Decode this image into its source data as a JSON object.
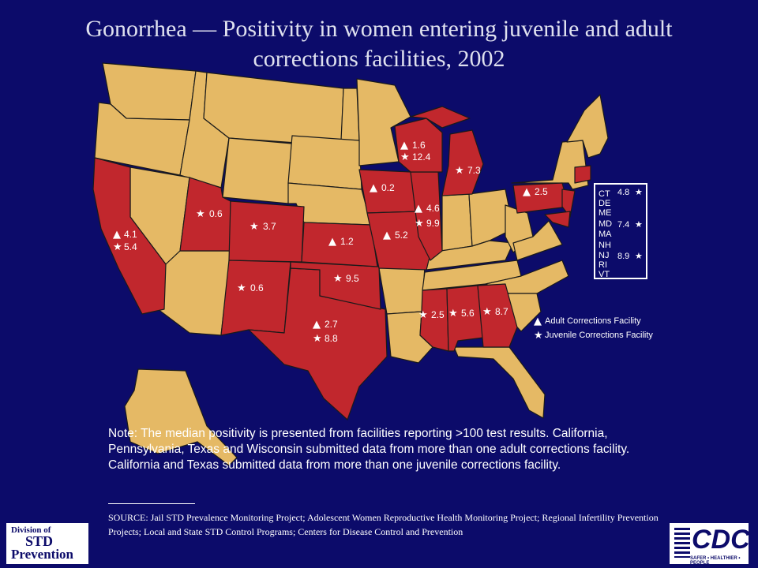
{
  "title": "Gonorrhea — Positivity in women entering juvenile and adult corrections facilities, 2002",
  "title_line1": "Gonorrhea — Positivity in women entering juvenile and adult",
  "title_line2": "corrections facilities, 2002",
  "colors": {
    "background": "#0c0b6a",
    "reporting_state": "#c1272d",
    "other_state": "#e5b965",
    "border": "#1a1a1a"
  },
  "icons": {
    "adult": "triangle-icon",
    "juvenile": "star-icon"
  },
  "states": [
    {
      "state": "WA",
      "adult": null,
      "juvenile": null
    },
    {
      "state": "CA",
      "adult": "4.1",
      "juvenile": "5.4"
    },
    {
      "state": "UT",
      "adult": null,
      "juvenile": "0.6"
    },
    {
      "state": "CO",
      "adult": null,
      "juvenile": "3.7"
    },
    {
      "state": "NM",
      "adult": null,
      "juvenile": "0.6"
    },
    {
      "state": "TX",
      "adult": "2.7",
      "juvenile": "8.8"
    },
    {
      "state": "OK",
      "adult": null,
      "juvenile": "9.5"
    },
    {
      "state": "KS",
      "adult": "1.2",
      "juvenile": null
    },
    {
      "state": "IA",
      "adult": "0.2",
      "juvenile": null
    },
    {
      "state": "MO",
      "adult": "5.2",
      "juvenile": null
    },
    {
      "state": "IL",
      "adult": "4.6",
      "juvenile": "9.9"
    },
    {
      "state": "WI",
      "adult": "1.6",
      "juvenile": "12.4"
    },
    {
      "state": "MI",
      "adult": null,
      "juvenile": "7.3"
    },
    {
      "state": "PA",
      "adult": "2.5",
      "juvenile": null
    },
    {
      "state": "MS",
      "adult": null,
      "juvenile": "2.5"
    },
    {
      "state": "AL",
      "adult": null,
      "juvenile": "5.6"
    },
    {
      "state": "GA",
      "adult": null,
      "juvenile": "8.7"
    }
  ],
  "labels": {
    "ca_adult": "4.1",
    "ca_juv": "5.4",
    "ut_juv": "0.6",
    "co_juv": "3.7",
    "nm_juv": "0.6",
    "tx_adult": "2.7",
    "tx_juv": "8.8",
    "ok_juv": "9.5",
    "ks_adult": "1.2",
    "ia_adult": "0.2",
    "mo_adult": "5.2",
    "il_adult": "4.6",
    "il_juv": "9.9",
    "wi_adult": "1.6",
    "wi_juv": "12.4",
    "mi_juv": "7.3",
    "pa_adult": "2.5",
    "ms_juv": "2.5",
    "al_juv": "5.6",
    "ga_juv": "8.7"
  },
  "northeast_box": {
    "states": [
      "CT",
      "DE",
      "ME",
      "MD",
      "MA",
      "NH",
      "NJ",
      "RI",
      "VT"
    ],
    "values": [
      {
        "state": "CT",
        "juvenile": "4.8"
      },
      {
        "state": "MD",
        "juvenile": "7.4"
      },
      {
        "state": "NJ",
        "juvenile": "8.9"
      }
    ]
  },
  "legend": {
    "adult": "Adult Corrections Facility",
    "juvenile": "Juvenile Corrections Facility"
  },
  "note": "Note: The median positivity is presented from facilities reporting >100 test results. California, Pennsylvania, Texas and Wisconsin submitted data from more than one adult corrections facility. California and Texas submitted data from more than one juvenile corrections facility.",
  "source": "SOURCE: Jail STD Prevalence Monitoring Project; Adolescent Women Reproductive Health Monitoring Project; Regional Infertility Prevention Projects; Local and State STD Control Programs; Centers for Disease Control and Prevention",
  "logos": {
    "dstd_line1": "Division of",
    "dstd_line2": "STD",
    "dstd_line3": "Prevention",
    "cdc": "CDC",
    "cdc_tagline": "SAFER • HEALTHIER • PEOPLE"
  }
}
